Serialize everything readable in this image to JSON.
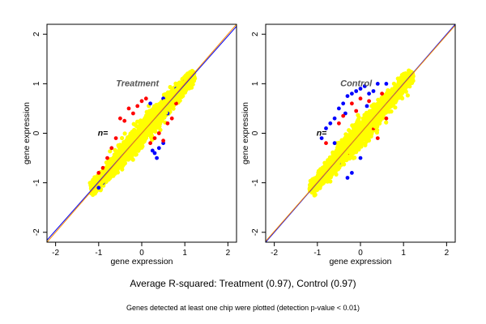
{
  "caption": "Average R-squared: Treatment (0.97), Control (0.97)",
  "note": "Genes detected at least one chip were plotted (detection p-value < 0.01)",
  "chart_data": [
    {
      "type": "scatter",
      "panel_label": "Treatment",
      "n_label": "n=",
      "xlabel": "gene expression",
      "ylabel": "gene expression",
      "xlim": [
        -2.2,
        2.2
      ],
      "ylim": [
        -2.2,
        2.2
      ],
      "xticks": [
        "-2",
        "-1",
        "0",
        "1",
        "2"
      ],
      "yticks": [
        "-2",
        "-1",
        "0",
        "1",
        "2"
      ],
      "grid": false,
      "point_colors": {
        "yellow": "#ffff00",
        "red": "#ff0000",
        "blue": "#0000ff"
      },
      "reference_lines": [
        {
          "color": "#0000ff",
          "from": [
            -2.2,
            -2.16
          ],
          "to": [
            2.2,
            2.16
          ]
        },
        {
          "color": "#ff8c00",
          "from": [
            -2.2,
            -2.2
          ],
          "to": [
            2.2,
            2.2
          ]
        }
      ],
      "cloud": {
        "x_range": [
          -1.15,
          1.2
        ],
        "spread": 0.22
      },
      "series": [
        {
          "color": "#0000ff",
          "points": [
            [
              0.3,
              -0.4
            ],
            [
              0.35,
              -0.5
            ],
            [
              0.25,
              -0.35
            ],
            [
              0.4,
              -0.3
            ],
            [
              0.5,
              -0.2
            ],
            [
              -0.6,
              -0.6
            ],
            [
              -0.7,
              -0.7
            ],
            [
              0.8,
              0.9
            ],
            [
              0.9,
              0.85
            ],
            [
              -0.9,
              -1.0
            ],
            [
              -1.0,
              -1.1
            ],
            [
              0.2,
              0.6
            ],
            [
              0.5,
              0.7
            ],
            [
              -0.3,
              -0.2
            ],
            [
              0.6,
              0.4
            ]
          ]
        },
        {
          "color": "#ff0000",
          "points": [
            [
              -0.5,
              0.3
            ],
            [
              -0.4,
              0.25
            ],
            [
              0.1,
              0.7
            ],
            [
              0.0,
              0.65
            ],
            [
              0.6,
              0.2
            ],
            [
              0.7,
              0.3
            ],
            [
              -0.3,
              0.5
            ],
            [
              0.3,
              -0.1
            ],
            [
              -0.8,
              -0.5
            ],
            [
              -0.9,
              -0.7
            ],
            [
              -0.6,
              -0.1
            ],
            [
              0.2,
              -0.2
            ],
            [
              0.4,
              0.0
            ],
            [
              -0.2,
              0.4
            ],
            [
              0.8,
              0.6
            ],
            [
              -1.0,
              -0.8
            ],
            [
              1.0,
              1.05
            ],
            [
              0.5,
              -0.15
            ],
            [
              -0.1,
              0.55
            ],
            [
              -0.7,
              -0.3
            ]
          ]
        }
      ]
    },
    {
      "type": "scatter",
      "panel_label": "Control",
      "n_label": "n=",
      "xlabel": "gene expression",
      "ylabel": "gene expression",
      "xlim": [
        -2.2,
        2.2
      ],
      "ylim": [
        -2.2,
        2.2
      ],
      "xticks": [
        "-2",
        "-1",
        "0",
        "1",
        "2"
      ],
      "yticks": [
        "-2",
        "-1",
        "0",
        "1",
        "2"
      ],
      "grid": false,
      "point_colors": {
        "yellow": "#ffff00",
        "red": "#ff0000",
        "blue": "#0000ff"
      },
      "reference_lines": [
        {
          "color": "#0000ff",
          "from": [
            -2.2,
            -2.2
          ],
          "to": [
            2.2,
            2.2
          ]
        },
        {
          "color": "#ff8c00",
          "from": [
            -2.2,
            -2.18
          ],
          "to": [
            2.2,
            2.18
          ]
        }
      ],
      "cloud": {
        "x_range": [
          -1.15,
          1.2
        ],
        "spread": 0.24
      },
      "series": [
        {
          "color": "#0000ff",
          "points": [
            [
              -0.6,
              0.3
            ],
            [
              -0.5,
              0.5
            ],
            [
              -0.3,
              0.75
            ],
            [
              -0.2,
              0.8
            ],
            [
              0.0,
              0.9
            ],
            [
              0.1,
              0.95
            ],
            [
              0.2,
              0.8
            ],
            [
              -0.7,
              0.2
            ],
            [
              -0.8,
              0.1
            ],
            [
              -0.9,
              -0.1
            ],
            [
              0.3,
              0.85
            ],
            [
              0.4,
              1.0
            ],
            [
              0.6,
              1.0
            ],
            [
              -0.4,
              0.6
            ],
            [
              -0.1,
              0.85
            ],
            [
              -0.5,
              -0.6
            ],
            [
              -0.3,
              -0.9
            ],
            [
              -0.2,
              -0.8
            ],
            [
              0.0,
              -0.5
            ],
            [
              -0.6,
              -0.2
            ],
            [
              0.15,
              0.55
            ],
            [
              -0.35,
              0.4
            ]
          ]
        },
        {
          "color": "#ff0000",
          "points": [
            [
              -0.5,
              0.2
            ],
            [
              -0.4,
              0.35
            ],
            [
              -0.2,
              0.6
            ],
            [
              0.0,
              0.7
            ],
            [
              0.3,
              0.1
            ],
            [
              0.4,
              -0.1
            ],
            [
              -0.6,
              -0.5
            ],
            [
              -0.3,
              -0.4
            ],
            [
              0.2,
              0.65
            ],
            [
              -0.8,
              -0.2
            ],
            [
              0.5,
              0.8
            ],
            [
              -0.1,
              0.45
            ],
            [
              0.6,
              0.3
            ]
          ]
        }
      ]
    }
  ]
}
